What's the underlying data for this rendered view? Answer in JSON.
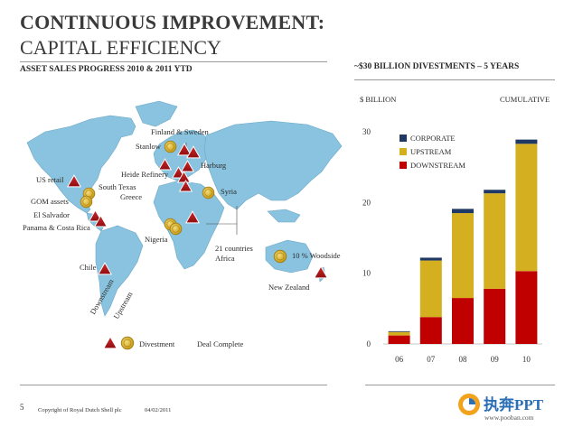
{
  "header": {
    "title_line1": "CONTINUOUS IMPROVEMENT:",
    "title_line2": "CAPITAL EFFICIENCY",
    "left_subtitle": "ASSET SALES PROGRESS 2010 & 2011 YTD",
    "right_subtitle": "~$30 BILLION DIVESTMENTS – 5 YEARS"
  },
  "map": {
    "labels": {
      "finland_sweden": "Finland & Sweden",
      "stanlow": "Stanlow",
      "heide": "Heide Refinery",
      "harburg": "Harburg",
      "us_retail": "US retail",
      "south_texas": "South Texas",
      "greece": "Greece",
      "syria": "Syria",
      "gom": "GOM assets",
      "el_salvador": "El Salvador",
      "panama": "Panama & Costa Rica",
      "nigeria": "Nigeria",
      "africa": "21 countries\nAfrica",
      "woodside": "10 % Woodside",
      "chile": "Chile",
      "new_zealand": "New Zealand"
    },
    "legend": {
      "downstream": "Downstream",
      "upstream": "Upstream",
      "divestment": "Divestment",
      "deal_complete": "Deal Complete"
    },
    "colors": {
      "downstream": "#b5121b",
      "upstream": "#d4b022",
      "map": "#8ac3df"
    }
  },
  "chart_data": {
    "type": "bar",
    "stacked": true,
    "cumulative": true,
    "title": "~$30 BILLION DIVESTMENTS – 5 YEARS",
    "ylabel": "$ BILLION",
    "right_label": "CUMULATIVE",
    "categories": [
      "06",
      "07",
      "08",
      "09",
      "10"
    ],
    "series": [
      {
        "name": "DOWNSTREAM",
        "color": "#c00000",
        "values": [
          1.2,
          3.8,
          6.5,
          7.8,
          10.3
        ]
      },
      {
        "name": "UPSTREAM",
        "color": "#d4b021",
        "values": [
          0.5,
          8.0,
          12.0,
          13.5,
          18.0
        ]
      },
      {
        "name": "CORPORATE",
        "color": "#1f3864",
        "values": [
          0.1,
          0.4,
          0.6,
          0.5,
          0.6
        ]
      }
    ],
    "ylim": [
      0,
      30
    ],
    "yticks": [
      0,
      10,
      20,
      30
    ],
    "legend_order": [
      "CORPORATE",
      "UPSTREAM",
      "DOWNSTREAM"
    ],
    "legend_position": "top-left"
  },
  "footer": {
    "page": "5",
    "copyright": "Copyright of Royal Dutch Shell plc",
    "date": "04/02/2011"
  },
  "logo": {
    "text": "执奔PPT",
    "url_text": "www.pooban.com"
  }
}
